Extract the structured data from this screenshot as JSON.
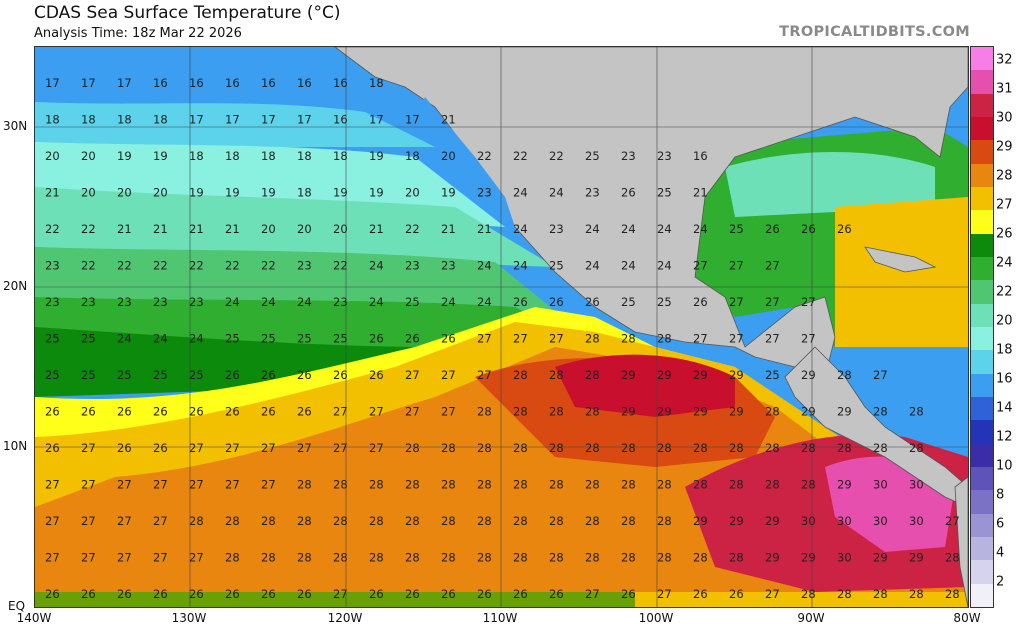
{
  "title": "CDAS Sea Surface Temperature (°C)",
  "subtitle": "Analysis Time: 18z Mar 22 2026",
  "credit": "TROPICALTIDBITS.COM",
  "lat_labels": [
    "30N",
    "20N",
    "10N",
    "EQ"
  ],
  "lon_labels": [
    "140W",
    "130W",
    "120W",
    "110W",
    "100W",
    "90W",
    "80W"
  ],
  "colorbar": {
    "ticks": [
      "32",
      "31",
      "30",
      "29",
      "28",
      "27",
      "26",
      "24",
      "22",
      "20",
      "18",
      "16",
      "14",
      "12",
      "10",
      "8",
      "6",
      "4",
      "2"
    ],
    "colors": [
      "#f77ee6",
      "#e64fae",
      "#cc2244",
      "#c8102e",
      "#d94a12",
      "#e9860f",
      "#f3c000",
      "#ffff19",
      "#0b8a0b",
      "#2fae2f",
      "#51c672",
      "#6ee0b8",
      "#8af0e0",
      "#5cd3ea",
      "#3b9ef0",
      "#2f62d8",
      "#2434b8",
      "#3a2ea8",
      "#5f52b8",
      "#7b72c6",
      "#9a94d4",
      "#b8b4e0",
      "#d6d3ec",
      "#f1f0f8"
    ]
  },
  "map_data": {
    "land_color": "#c4c4c4",
    "grid_values": [
      [
        17,
        17,
        17,
        16,
        16,
        16,
        16,
        16,
        16,
        18
      ],
      [
        18,
        18,
        18,
        18,
        17,
        17,
        17,
        17,
        16,
        17,
        17,
        21
      ],
      [
        20,
        20,
        19,
        19,
        18,
        18,
        18,
        18,
        18,
        19,
        18,
        20,
        22,
        22,
        22,
        25,
        23,
        23,
        16
      ],
      [
        21,
        20,
        20,
        20,
        19,
        19,
        19,
        18,
        19,
        19,
        20,
        19,
        23,
        24,
        24,
        23,
        26,
        25,
        21
      ],
      [
        22,
        22,
        21,
        21,
        21,
        21,
        20,
        20,
        20,
        21,
        22,
        21,
        21,
        24,
        23,
        24,
        24,
        24,
        24,
        25,
        26,
        26,
        26
      ],
      [
        23,
        22,
        22,
        22,
        22,
        22,
        22,
        23,
        22,
        24,
        23,
        23,
        24,
        24,
        25,
        24,
        24,
        24,
        27,
        27,
        27
      ],
      [
        23,
        23,
        23,
        23,
        23,
        24,
        24,
        24,
        23,
        24,
        25,
        24,
        24,
        26,
        26,
        26,
        25,
        25,
        26,
        27,
        27,
        27
      ],
      [
        25,
        25,
        24,
        24,
        24,
        25,
        25,
        25,
        25,
        26,
        26,
        26,
        27,
        27,
        27,
        28,
        28,
        28,
        27,
        27,
        27,
        27
      ],
      [
        25,
        25,
        25,
        25,
        25,
        26,
        26,
        26,
        26,
        26,
        27,
        27,
        27,
        28,
        28,
        28,
        29,
        29,
        29,
        29,
        25,
        29,
        28,
        27
      ],
      [
        26,
        26,
        26,
        26,
        26,
        26,
        26,
        26,
        27,
        27,
        27,
        27,
        28,
        28,
        28,
        28,
        29,
        29,
        29,
        29,
        28,
        29,
        29,
        28,
        28
      ],
      [
        26,
        27,
        26,
        26,
        27,
        27,
        27,
        27,
        27,
        27,
        28,
        28,
        28,
        28,
        28,
        28,
        28,
        28,
        28,
        28,
        28,
        28,
        28,
        28,
        28
      ],
      [
        27,
        27,
        27,
        27,
        27,
        27,
        27,
        28,
        28,
        28,
        28,
        28,
        28,
        28,
        28,
        28,
        28,
        28,
        28,
        28,
        28,
        28,
        29,
        30,
        30
      ],
      [
        27,
        27,
        27,
        27,
        28,
        28,
        28,
        28,
        28,
        28,
        28,
        28,
        28,
        28,
        28,
        28,
        28,
        28,
        29,
        29,
        29,
        30,
        30,
        30,
        30,
        27
      ],
      [
        27,
        27,
        27,
        27,
        27,
        28,
        28,
        28,
        28,
        28,
        28,
        28,
        28,
        28,
        28,
        28,
        28,
        28,
        28,
        28,
        29,
        29,
        30,
        29,
        29,
        28
      ],
      [
        26,
        26,
        26,
        26,
        26,
        26,
        26,
        26,
        27,
        26,
        26,
        26,
        26,
        26,
        26,
        27,
        26,
        27,
        26,
        26,
        27,
        28,
        28,
        28,
        28,
        28
      ]
    ]
  }
}
